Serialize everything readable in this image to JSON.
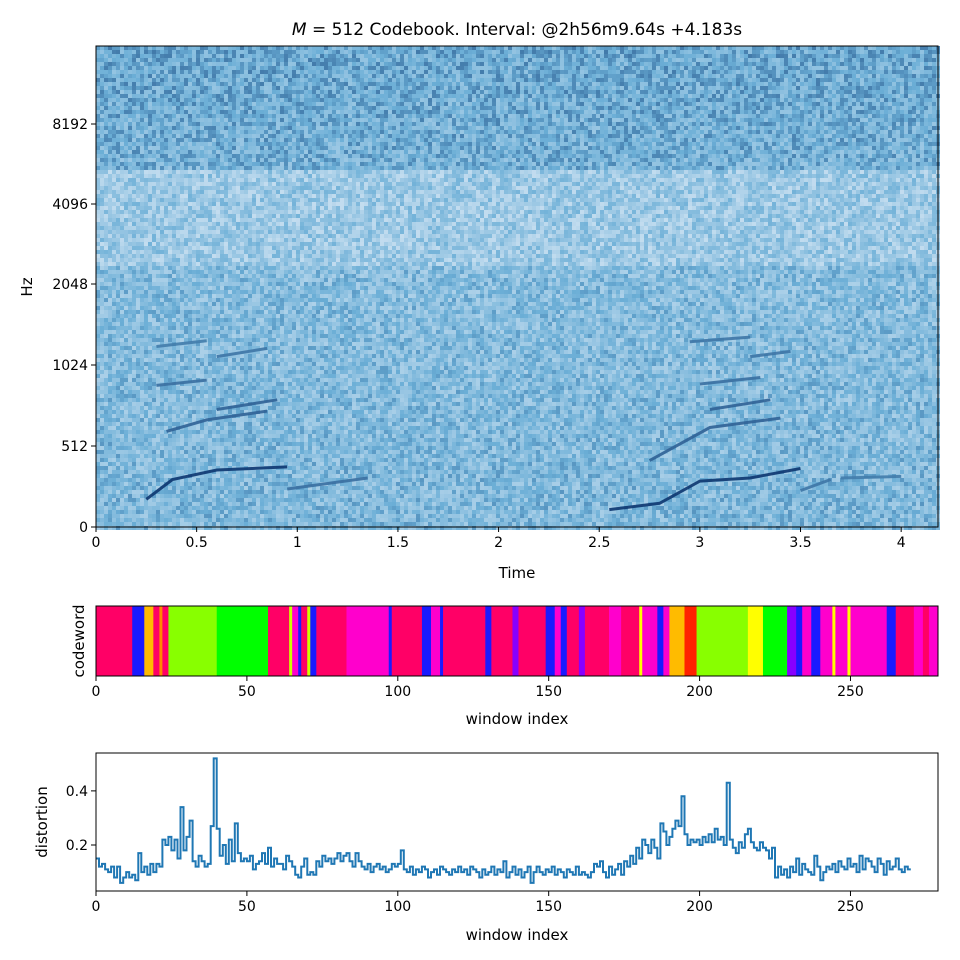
{
  "chart_data": [
    {
      "type": "heatmap",
      "title_italic": "M",
      "title_rest": " = 512 Codebook. Interval: @2h56m9.64s +4.183s",
      "xlabel": "Time",
      "ylabel": "Hz",
      "xlim": [
        0,
        4.183
      ],
      "xticks": [
        0,
        0.5,
        1,
        1.5,
        2,
        2.5,
        3,
        3.5,
        4
      ],
      "xtick_labels": [
        "0",
        "0.5",
        "1",
        "1.5",
        "2",
        "2.5",
        "3",
        "3.5",
        "4"
      ],
      "yticks": [
        0,
        512,
        1024,
        2048,
        4096,
        8192
      ],
      "ytick_labels": [
        "0",
        "512",
        "1024",
        "2048",
        "4096",
        "8192"
      ],
      "yscale": "log-like",
      "colormap": "Blues",
      "colors": {
        "light": "#deebf7",
        "mid": "#6baed6",
        "dark": "#08306b"
      },
      "harmonic_tracks": [
        {
          "t": [
            0.25,
            0.38,
            0.6,
            0.95
          ],
          "hz": [
            175,
            300,
            360,
            380
          ],
          "strength": 0.95
        },
        {
          "t": [
            0.35,
            0.55,
            0.85
          ],
          "hz": [
            580,
            640,
            690
          ],
          "strength": 0.6
        },
        {
          "t": [
            0.6,
            0.9
          ],
          "hz": [
            700,
            760
          ],
          "strength": 0.6
        },
        {
          "t": [
            0.3,
            0.55
          ],
          "hz": [
            860,
            900
          ],
          "strength": 0.5
        },
        {
          "t": [
            0.6,
            0.85
          ],
          "hz": [
            1100,
            1180
          ],
          "strength": 0.45
        },
        {
          "t": [
            0.3,
            0.55
          ],
          "hz": [
            1200,
            1260
          ],
          "strength": 0.4
        },
        {
          "t": [
            0.95,
            1.35
          ],
          "hz": [
            240,
            310
          ],
          "strength": 0.5
        },
        {
          "t": [
            2.55,
            2.8,
            3.0,
            3.25,
            3.5
          ],
          "hz": [
            110,
            150,
            290,
            310,
            370
          ],
          "strength": 0.95
        },
        {
          "t": [
            2.75,
            3.05,
            3.4
          ],
          "hz": [
            420,
            600,
            650
          ],
          "strength": 0.6
        },
        {
          "t": [
            3.05,
            3.35
          ],
          "hz": [
            700,
            760
          ],
          "strength": 0.6
        },
        {
          "t": [
            3.0,
            3.3
          ],
          "hz": [
            870,
            920
          ],
          "strength": 0.5
        },
        {
          "t": [
            3.25,
            3.45
          ],
          "hz": [
            1100,
            1150
          ],
          "strength": 0.45
        },
        {
          "t": [
            2.95,
            3.25
          ],
          "hz": [
            1250,
            1300
          ],
          "strength": 0.45
        },
        {
          "t": [
            3.5,
            3.65
          ],
          "hz": [
            230,
            300
          ],
          "strength": 0.45
        },
        {
          "t": [
            3.7,
            4.0
          ],
          "hz": [
            310,
            320
          ],
          "strength": 0.4
        }
      ]
    },
    {
      "type": "bar",
      "xlabel": "window index",
      "ylabel": "codeword",
      "xlim": [
        0,
        279
      ],
      "xticks": [
        0,
        50,
        100,
        150,
        200,
        250
      ],
      "xtick_labels": [
        "0",
        "50",
        "100",
        "150",
        "200",
        "250"
      ],
      "segments": [
        {
          "x": [
            0,
            12
          ],
          "color": "#ff0066"
        },
        {
          "x": [
            12,
            16
          ],
          "color": "#1a1aff"
        },
        {
          "x": [
            16,
            19
          ],
          "color": "#ffbb00"
        },
        {
          "x": [
            19,
            21
          ],
          "color": "#ff0066"
        },
        {
          "x": [
            21,
            22
          ],
          "color": "#ff8800"
        },
        {
          "x": [
            22,
            24
          ],
          "color": "#ff0066"
        },
        {
          "x": [
            24,
            40
          ],
          "color": "#88ff00"
        },
        {
          "x": [
            40,
            57
          ],
          "color": "#00ff00"
        },
        {
          "x": [
            57,
            64
          ],
          "color": "#ff0066"
        },
        {
          "x": [
            64,
            65
          ],
          "color": "#ccff00"
        },
        {
          "x": [
            65,
            67
          ],
          "color": "#ff00cc"
        },
        {
          "x": [
            67,
            68
          ],
          "color": "#1a1aff"
        },
        {
          "x": [
            68,
            70
          ],
          "color": "#ff0066"
        },
        {
          "x": [
            70,
            71
          ],
          "color": "#ccff00"
        },
        {
          "x": [
            71,
            73
          ],
          "color": "#1a1aff"
        },
        {
          "x": [
            73,
            83
          ],
          "color": "#ff0066"
        },
        {
          "x": [
            83,
            97
          ],
          "color": "#ff00cc"
        },
        {
          "x": [
            97,
            98
          ],
          "color": "#1a1aff"
        },
        {
          "x": [
            98,
            108
          ],
          "color": "#ff0066"
        },
        {
          "x": [
            108,
            111
          ],
          "color": "#1a1aff"
        },
        {
          "x": [
            111,
            114
          ],
          "color": "#ff00cc"
        },
        {
          "x": [
            114,
            115
          ],
          "color": "#1a1aff"
        },
        {
          "x": [
            115,
            129
          ],
          "color": "#ff0066"
        },
        {
          "x": [
            129,
            131
          ],
          "color": "#1a1aff"
        },
        {
          "x": [
            131,
            138
          ],
          "color": "#ff0066"
        },
        {
          "x": [
            138,
            140
          ],
          "color": "#8800ff"
        },
        {
          "x": [
            140,
            149
          ],
          "color": "#ff0066"
        },
        {
          "x": [
            149,
            152
          ],
          "color": "#1a1aff"
        },
        {
          "x": [
            152,
            154
          ],
          "color": "#ff00cc"
        },
        {
          "x": [
            154,
            156
          ],
          "color": "#1a1aff"
        },
        {
          "x": [
            156,
            160
          ],
          "color": "#ff0066"
        },
        {
          "x": [
            160,
            162
          ],
          "color": "#8800ff"
        },
        {
          "x": [
            162,
            170
          ],
          "color": "#ff0066"
        },
        {
          "x": [
            170,
            174
          ],
          "color": "#ff00cc"
        },
        {
          "x": [
            174,
            180
          ],
          "color": "#ff0066"
        },
        {
          "x": [
            180,
            181
          ],
          "color": "#ffff00"
        },
        {
          "x": [
            181,
            186
          ],
          "color": "#ff00cc"
        },
        {
          "x": [
            186,
            188
          ],
          "color": "#1a1aff"
        },
        {
          "x": [
            188,
            190
          ],
          "color": "#ff00cc"
        },
        {
          "x": [
            190,
            195
          ],
          "color": "#ffbb00"
        },
        {
          "x": [
            195,
            199
          ],
          "color": "#ff2200"
        },
        {
          "x": [
            199,
            216
          ],
          "color": "#88ff00"
        },
        {
          "x": [
            216,
            221
          ],
          "color": "#ffff00"
        },
        {
          "x": [
            221,
            229
          ],
          "color": "#00ff00"
        },
        {
          "x": [
            229,
            232
          ],
          "color": "#8800ff"
        },
        {
          "x": [
            232,
            234
          ],
          "color": "#1a1aff"
        },
        {
          "x": [
            234,
            237
          ],
          "color": "#ff00cc"
        },
        {
          "x": [
            237,
            240
          ],
          "color": "#1a1aff"
        },
        {
          "x": [
            240,
            244
          ],
          "color": "#ff00cc"
        },
        {
          "x": [
            244,
            245
          ],
          "color": "#ffff00"
        },
        {
          "x": [
            245,
            249
          ],
          "color": "#ff00cc"
        },
        {
          "x": [
            249,
            250
          ],
          "color": "#ffff00"
        },
        {
          "x": [
            250,
            262
          ],
          "color": "#ff00cc"
        },
        {
          "x": [
            262,
            265
          ],
          "color": "#1a1aff"
        },
        {
          "x": [
            265,
            271
          ],
          "color": "#ff0066"
        },
        {
          "x": [
            271,
            274
          ],
          "color": "#ff00cc"
        },
        {
          "x": [
            274,
            276
          ],
          "color": "#ff0066"
        },
        {
          "x": [
            276,
            279
          ],
          "color": "#ff00cc"
        }
      ]
    },
    {
      "type": "line",
      "xlabel": "window index",
      "ylabel": "distortion",
      "xlim": [
        0,
        279
      ],
      "ylim": [
        0.03,
        0.54
      ],
      "xticks": [
        0,
        50,
        100,
        150,
        200,
        250
      ],
      "xtick_labels": [
        "0",
        "50",
        "100",
        "150",
        "200",
        "250"
      ],
      "yticks": [
        0.2,
        0.4
      ],
      "ytick_labels": [
        "0.2",
        "0.4"
      ],
      "color": "#1f77b4",
      "step": true,
      "values": [
        0.15,
        0.12,
        0.13,
        0.11,
        0.1,
        0.12,
        0.08,
        0.12,
        0.06,
        0.08,
        0.1,
        0.08,
        0.09,
        0.07,
        0.17,
        0.1,
        0.12,
        0.09,
        0.13,
        0.1,
        0.13,
        0.12,
        0.22,
        0.2,
        0.23,
        0.18,
        0.22,
        0.15,
        0.34,
        0.18,
        0.23,
        0.29,
        0.14,
        0.12,
        0.16,
        0.14,
        0.12,
        0.13,
        0.27,
        0.52,
        0.26,
        0.16,
        0.2,
        0.13,
        0.22,
        0.14,
        0.28,
        0.17,
        0.14,
        0.15,
        0.14,
        0.16,
        0.11,
        0.13,
        0.14,
        0.17,
        0.13,
        0.19,
        0.12,
        0.15,
        0.13,
        0.13,
        0.11,
        0.16,
        0.14,
        0.12,
        0.09,
        0.08,
        0.12,
        0.15,
        0.09,
        0.1,
        0.09,
        0.14,
        0.12,
        0.16,
        0.14,
        0.15,
        0.13,
        0.15,
        0.17,
        0.14,
        0.16,
        0.17,
        0.14,
        0.12,
        0.17,
        0.14,
        0.12,
        0.11,
        0.13,
        0.1,
        0.12,
        0.13,
        0.11,
        0.12,
        0.1,
        0.11,
        0.13,
        0.12,
        0.13,
        0.18,
        0.11,
        0.1,
        0.12,
        0.09,
        0.11,
        0.1,
        0.12,
        0.11,
        0.08,
        0.1,
        0.11,
        0.09,
        0.12,
        0.11,
        0.1,
        0.09,
        0.11,
        0.1,
        0.12,
        0.1,
        0.11,
        0.09,
        0.12,
        0.11,
        0.1,
        0.08,
        0.11,
        0.09,
        0.1,
        0.12,
        0.09,
        0.11,
        0.1,
        0.14,
        0.08,
        0.1,
        0.12,
        0.09,
        0.11,
        0.08,
        0.1,
        0.12,
        0.06,
        0.1,
        0.12,
        0.1,
        0.09,
        0.11,
        0.1,
        0.12,
        0.09,
        0.11,
        0.1,
        0.08,
        0.11,
        0.1,
        0.09,
        0.12,
        0.09,
        0.1,
        0.09,
        0.08,
        0.1,
        0.13,
        0.12,
        0.14,
        0.1,
        0.08,
        0.12,
        0.09,
        0.11,
        0.13,
        0.09,
        0.14,
        0.12,
        0.16,
        0.13,
        0.19,
        0.15,
        0.22,
        0.2,
        0.17,
        0.22,
        0.19,
        0.15,
        0.28,
        0.25,
        0.2,
        0.23,
        0.26,
        0.29,
        0.27,
        0.38,
        0.24,
        0.2,
        0.22,
        0.21,
        0.22,
        0.2,
        0.23,
        0.21,
        0.24,
        0.21,
        0.26,
        0.22,
        0.23,
        0.2,
        0.43,
        0.22,
        0.19,
        0.17,
        0.21,
        0.19,
        0.24,
        0.26,
        0.21,
        0.19,
        0.18,
        0.21,
        0.19,
        0.18,
        0.15,
        0.19,
        0.08,
        0.12,
        0.09,
        0.11,
        0.08,
        0.12,
        0.1,
        0.15,
        0.09,
        0.13,
        0.11,
        0.1,
        0.09,
        0.16,
        0.12,
        0.07,
        0.1,
        0.12,
        0.11,
        0.13,
        0.1,
        0.14,
        0.12,
        0.11,
        0.15,
        0.12,
        0.13,
        0.1,
        0.16,
        0.11,
        0.15,
        0.14,
        0.12,
        0.1,
        0.15,
        0.13,
        0.09,
        0.14,
        0.11,
        0.12,
        0.15,
        0.11,
        0.1,
        0.12,
        0.11
      ]
    }
  ]
}
